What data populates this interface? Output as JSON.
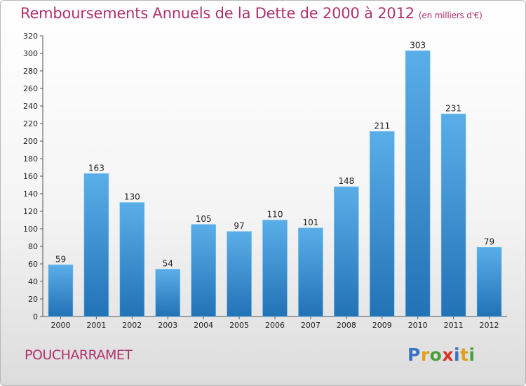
{
  "header": {
    "title": "Remboursements Annuels de la Dette de 2000 à 2012",
    "unit": "(en milliers d'€)"
  },
  "footer": {
    "commune": "POUCHARRAMET",
    "logo": "Proxiti"
  },
  "colors": {
    "title": "#b0306a",
    "bar_top": "#5aaee8",
    "bar_bottom": "#2272b6",
    "logo_letters": [
      "#3a73c4",
      "#e0a020",
      "#4aa03a",
      "#d8342a",
      "#3a73c4",
      "#e0a020",
      "#4aa03a"
    ]
  },
  "chart_data": {
    "type": "bar",
    "title": "Remboursements Annuels de la Dette de 2000 à 2012",
    "xlabel": "",
    "ylabel": "en milliers d'€",
    "categories": [
      "2000",
      "2001",
      "2002",
      "2003",
      "2004",
      "2005",
      "2006",
      "2007",
      "2008",
      "2009",
      "2010",
      "2011",
      "2012"
    ],
    "values": [
      59,
      163,
      130,
      54,
      105,
      97,
      110,
      101,
      148,
      211,
      303,
      231,
      79
    ],
    "ylim": [
      0,
      320
    ],
    "yticks": [
      0,
      20,
      40,
      60,
      80,
      100,
      120,
      140,
      160,
      180,
      200,
      220,
      240,
      260,
      280,
      300,
      320
    ],
    "grid": false,
    "legend": "none"
  }
}
